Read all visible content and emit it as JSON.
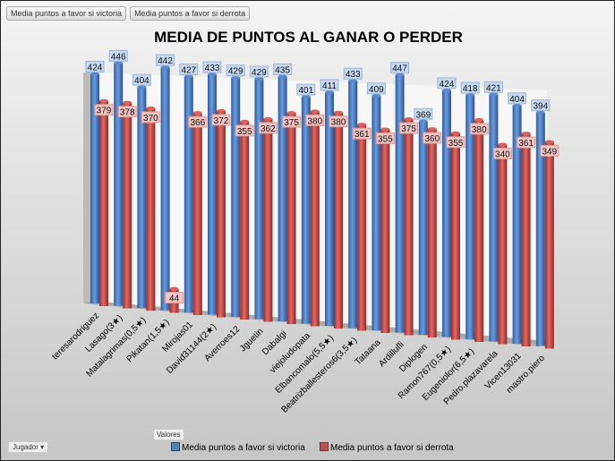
{
  "buttons": {
    "victoria": "Media puntos a favor si victoria",
    "derrota": "Media puntos a favor si derrota"
  },
  "valores": "Valores",
  "jugador": "Jugador",
  "chart_data": {
    "type": "bar",
    "title": "MEDIA DE PUNTOS  AL GANAR O PERDER",
    "categories": [
      "teresarodriguez",
      "Lasago(3★)",
      "Matalagrimas(0,5★)",
      "Pikatan(1,5★)",
      "Mirojas01",
      "David31144(2★)",
      "Averroes12",
      "Jguetin",
      "Dabalgi",
      "viejoludopata",
      "Elbancomalo(5,5★)",
      "Beatrizballesteros6(3,5★)",
      "Tataana",
      "Ardillufli",
      "Diplogen",
      "Ramon767(0,5★)",
      "Eugeniolor(6,5★)",
      "Pedro.plazavarela",
      "Vicen13031",
      "mastro.piero"
    ],
    "series": [
      {
        "name": "Media puntos a favor si victoria",
        "color": "#4f81bd",
        "values": [
          424,
          446,
          404,
          442,
          427,
          433,
          429,
          429,
          435,
          401,
          411,
          433,
          409,
          447,
          369,
          424,
          418,
          421,
          404,
          394
        ]
      },
      {
        "name": "Media puntos a favor si derrota",
        "color": "#c0504d",
        "values": [
          379,
          378,
          370,
          44,
          366,
          372,
          355,
          362,
          375,
          380,
          380,
          361,
          355,
          375,
          360,
          355,
          380,
          340,
          361,
          349
        ]
      }
    ],
    "legend": "bottom"
  }
}
